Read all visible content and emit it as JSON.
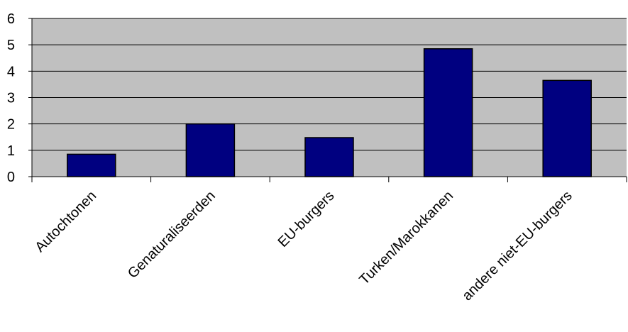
{
  "chart_data": {
    "type": "bar",
    "title": "",
    "xlabel": "",
    "ylabel": "",
    "categories": [
      "Autochtonen",
      "Genaturaliseerden",
      "EU-burgers",
      "Turken/Marokkanen",
      "andere niet-EU-burgers"
    ],
    "values": [
      0.85,
      2.0,
      1.48,
      4.85,
      3.65
    ],
    "ylim": [
      0,
      6
    ],
    "yticks": [
      "0",
      "1",
      "2",
      "3",
      "4",
      "5",
      "6"
    ],
    "grid": true,
    "legend": "none",
    "colors": {
      "bar": "#000080",
      "plot_background": "#c0c0c0",
      "gridline": "#000000"
    }
  }
}
